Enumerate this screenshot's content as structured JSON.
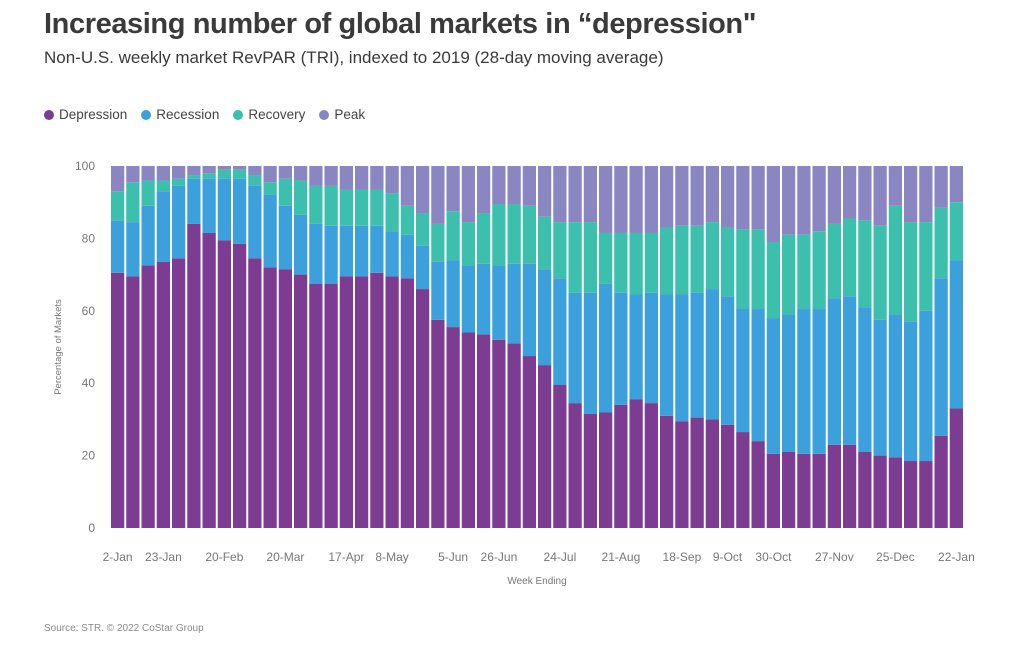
{
  "header": {
    "title": "Increasing number of global markets in “depression\"",
    "subtitle": "Non-U.S. weekly market RevPAR (TRI), indexed to 2019 (28-day moving average)"
  },
  "footer": {
    "source": "Source: STR. © 2022 CoStar Group"
  },
  "colors": {
    "Depression": "#7b3c92",
    "Recession": "#3ba0db",
    "Recovery": "#3dbfad",
    "Peak": "#8a86c2",
    "axis_text": "#777777",
    "grid": "#e6e6e6"
  },
  "chart_data": {
    "type": "bar",
    "stacked": true,
    "xlabel": "Week Ending",
    "ylabel": "Percentage of Markets",
    "ylim": [
      0,
      100
    ],
    "yticks": [
      0,
      20,
      40,
      60,
      80,
      100
    ],
    "legend_position": "top-left",
    "grid": false,
    "tick_labels": [
      {
        "index": 0,
        "label": "2-Jan"
      },
      {
        "index": 3,
        "label": "23-Jan"
      },
      {
        "index": 7,
        "label": "20-Feb"
      },
      {
        "index": 11,
        "label": "20-Mar"
      },
      {
        "index": 15,
        "label": "17-Apr"
      },
      {
        "index": 18,
        "label": "8-May"
      },
      {
        "index": 22,
        "label": "5-Jun"
      },
      {
        "index": 25,
        "label": "26-Jun"
      },
      {
        "index": 29,
        "label": "24-Jul"
      },
      {
        "index": 33,
        "label": "21-Aug"
      },
      {
        "index": 37,
        "label": "18-Sep"
      },
      {
        "index": 40,
        "label": "9-Oct"
      },
      {
        "index": 43,
        "label": "30-Oct"
      },
      {
        "index": 47,
        "label": "27-Nov"
      },
      {
        "index": 51,
        "label": "25-Dec"
      },
      {
        "index": 55,
        "label": "22-Jan"
      }
    ],
    "series": [
      {
        "name": "Depression",
        "values": [
          70.5,
          69.5,
          72.5,
          73.5,
          74.5,
          84,
          81.5,
          79.5,
          78.5,
          74.5,
          72,
          71.5,
          70,
          67.5,
          67.5,
          69.5,
          69.5,
          70.5,
          69.5,
          69,
          66,
          57.5,
          55.5,
          54,
          53.5,
          52,
          51,
          47.5,
          45,
          39.5,
          34.5,
          31.5,
          32,
          34,
          35.5,
          34.5,
          31,
          29.5,
          30.5,
          30,
          28.5,
          26.5,
          24,
          20.5,
          21,
          20.5,
          20.5,
          23,
          23,
          21,
          20,
          19.5,
          18.5,
          18.5,
          25.5,
          33
        ]
      },
      {
        "name": "Recession",
        "values": [
          14.5,
          15,
          16.5,
          19.5,
          20,
          12.5,
          15,
          17,
          18,
          20,
          20,
          17.5,
          16.5,
          16.5,
          16,
          14,
          14,
          13,
          12.5,
          12,
          12,
          16,
          18.5,
          18.5,
          19.5,
          20.5,
          22,
          25.5,
          26.5,
          29.5,
          30.5,
          33.5,
          35.5,
          31,
          29,
          30.5,
          33.5,
          35,
          34.5,
          36,
          35.5,
          34,
          36.5,
          37.5,
          38,
          40,
          40,
          40.5,
          41,
          40,
          37.5,
          39.5,
          38.5,
          41.5,
          43.5,
          41
        ]
      },
      {
        "name": "Recovery",
        "values": [
          8,
          11,
          7,
          3,
          2,
          1,
          1.5,
          2.5,
          2.5,
          3,
          3.5,
          7.5,
          9.5,
          10.5,
          11,
          10,
          10,
          10,
          10.5,
          8,
          9,
          10.5,
          13.5,
          12,
          14,
          17,
          16.5,
          16,
          14.5,
          15.5,
          19.5,
          19.5,
          14,
          16.5,
          17,
          16.5,
          18.5,
          19,
          18.5,
          18.5,
          19,
          22,
          22,
          21,
          22,
          20.5,
          21.5,
          20.5,
          21.5,
          24,
          26,
          30,
          27.5,
          24.5,
          19.5,
          16
        ]
      },
      {
        "name": "Peak",
        "values": [
          7,
          4.5,
          4,
          4,
          3.5,
          2.5,
          2,
          1,
          1,
          2.5,
          4.5,
          3.5,
          4,
          5.5,
          5.5,
          6.5,
          6.5,
          6.5,
          7.5,
          11,
          13,
          16,
          12.5,
          15.5,
          13,
          10.5,
          10.5,
          11,
          14,
          15.5,
          15.5,
          15.5,
          18.5,
          18.5,
          18.5,
          18.5,
          17,
          16.5,
          16.5,
          15.5,
          17,
          17.5,
          17.5,
          21,
          19,
          19,
          18,
          16,
          14.5,
          15,
          16.5,
          11,
          15.5,
          15.5,
          11.5,
          10
        ]
      }
    ]
  }
}
